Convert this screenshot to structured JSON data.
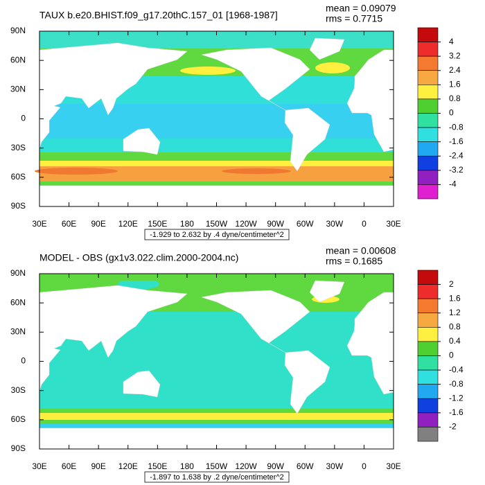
{
  "panels": [
    {
      "title": "TAUX b.e20.BHIST.f09_g17.20thC.157_01 [1968-1987]",
      "mean": "mean = 0.09079",
      "rms": "rms = 0.7715",
      "info": "-1.929 to 2.632 by .4 dyne/centimeter^2",
      "colorbar_labels": [
        "4",
        "3.2",
        "2.4",
        "1.6",
        "0.8",
        "0",
        "-0.8",
        "-1.6",
        "-2.4",
        "-3.2",
        "-4"
      ]
    },
    {
      "title": "MODEL - OBS (gx1v3.022.clim.2000-2004.nc)",
      "mean": "mean = 0.00608",
      "rms": "rms = 0.1685",
      "info": "-1.897 to 1.638 by .2 dyne/centimeter^2",
      "colorbar_labels": [
        "2",
        "1.6",
        "1.2",
        "0.8",
        "0.4",
        "0",
        "-0.4",
        "-0.8",
        "-1.2",
        "-1.6",
        "-2"
      ]
    }
  ],
  "x_labels": [
    "30E",
    "60E",
    "90E",
    "120E",
    "150E",
    "180",
    "150W",
    "120W",
    "90W",
    "60W",
    "30W",
    "0",
    "30E"
  ],
  "y_labels": [
    "90N",
    "60N",
    "30N",
    "0",
    "30S",
    "60S",
    "90S"
  ]
}
